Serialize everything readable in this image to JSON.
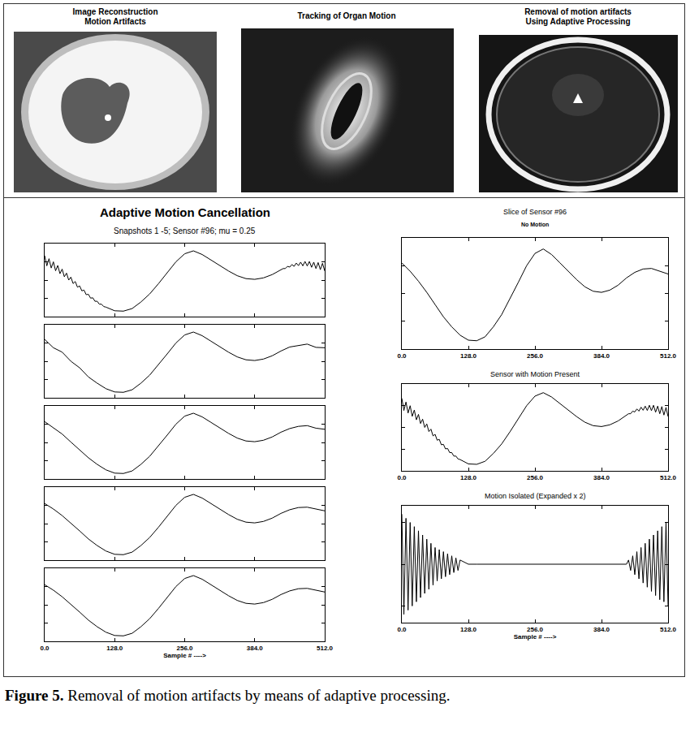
{
  "images": [
    {
      "title": [
        "Image Reconstruction",
        "Motion Artifacts"
      ]
    },
    {
      "title": [
        "Tracking of Organ Motion"
      ]
    },
    {
      "title": [
        "Removal of motion artifacts",
        "Using Adaptive Processing"
      ]
    }
  ],
  "chart_data": [
    {
      "type": "line",
      "title": "Adaptive Motion Cancellation",
      "subtitle": "Snapshots 1 -5; Sensor #96; mu = 0.25",
      "color": "#000000",
      "tick_labels": false,
      "grid": false,
      "xlim": [
        0,
        512
      ],
      "ylim": [
        -1,
        1
      ],
      "xticks": [
        {
          "value": 0,
          "label": "0.0"
        },
        {
          "value": 128,
          "label": "128.0"
        },
        {
          "value": 256,
          "label": "256.0"
        },
        {
          "value": 384,
          "label": "384.0"
        },
        {
          "value": 512,
          "label": "512.0"
        }
      ],
      "yticks": [
        -1,
        -0.5,
        0,
        0.5,
        1
      ],
      "x": [
        0,
        4,
        8,
        12,
        16,
        20,
        24,
        28,
        32,
        36,
        40,
        44,
        48,
        52,
        56,
        60,
        64,
        68,
        72,
        76,
        80,
        84,
        88,
        92,
        96,
        100,
        104,
        108,
        112,
        128,
        144,
        160,
        176,
        192,
        208,
        224,
        240,
        256,
        272,
        288,
        304,
        320,
        336,
        352,
        368,
        384,
        400,
        416,
        432,
        436,
        440,
        444,
        448,
        452,
        456,
        460,
        464,
        468,
        472,
        476,
        480,
        484,
        488,
        492,
        496,
        500,
        504,
        508,
        512
      ],
      "values": [
        0.67,
        0.39,
        0.585,
        0.33,
        0.5,
        0.255,
        0.4,
        0.175,
        0.3,
        0.09,
        0.19,
        0,
        0.08,
        -0.095,
        -0.04,
        -0.195,
        -0.16,
        -0.295,
        -0.275,
        -0.4,
        -0.39,
        -0.495,
        -0.485,
        -0.58,
        -0.58,
        -0.66,
        -0.66,
        -0.725,
        -0.74,
        -0.84,
        -0.85,
        -0.78,
        -0.6,
        -0.38,
        -0.1,
        0.2,
        0.5,
        0.72,
        0.8,
        0.7,
        0.55,
        0.4,
        0.25,
        0.12,
        0.04,
        0.02,
        0.06,
        0.15,
        0.28,
        0.315,
        0.315,
        0.375,
        0.355,
        0.425,
        0.375,
        0.465,
        0.395,
        0.49,
        0.39,
        0.51,
        0.385,
        0.51,
        0.35,
        0.49,
        0.315,
        0.48,
        0.285,
        0.46,
        0.25
      ]
    },
    {
      "type": "line",
      "color": "#000000",
      "tick_labels": false,
      "grid": false,
      "xlim": [
        0,
        512
      ],
      "ylim": [
        -1,
        1
      ],
      "xticks": [
        {
          "value": 0,
          "label": "0.0"
        },
        {
          "value": 128,
          "label": "128.0"
        },
        {
          "value": 256,
          "label": "256.0"
        },
        {
          "value": 384,
          "label": "384.0"
        },
        {
          "value": 512,
          "label": "512.0"
        }
      ],
      "yticks": [
        -1,
        -0.5,
        0,
        0.5,
        1
      ],
      "x": [
        0,
        16,
        32,
        48,
        64,
        80,
        96,
        112,
        128,
        144,
        160,
        176,
        192,
        208,
        224,
        240,
        256,
        272,
        288,
        304,
        320,
        336,
        352,
        368,
        384,
        400,
        416,
        432,
        448,
        464,
        480,
        496,
        512
      ],
      "values": [
        0.6,
        0.37,
        0.25,
        0,
        -0.18,
        -0.43,
        -0.6,
        -0.75,
        -0.84,
        -0.85,
        -0.78,
        -0.6,
        -0.38,
        -0.1,
        0.2,
        0.5,
        0.72,
        0.8,
        0.7,
        0.55,
        0.4,
        0.25,
        0.12,
        0.04,
        0.02,
        0.06,
        0.15,
        0.28,
        0.39,
        0.43,
        0.47,
        0.38,
        0.37
      ]
    },
    {
      "type": "line",
      "color": "#000000",
      "tick_labels": false,
      "grid": false,
      "xlim": [
        0,
        512
      ],
      "ylim": [
        -1,
        1
      ],
      "xticks": [
        {
          "value": 0,
          "label": "0.0"
        },
        {
          "value": 128,
          "label": "128.0"
        },
        {
          "value": 256,
          "label": "256.0"
        },
        {
          "value": 384,
          "label": "384.0"
        },
        {
          "value": 512,
          "label": "512.0"
        }
      ],
      "yticks": [
        -1,
        -0.5,
        0,
        0.5,
        1
      ],
      "x": [
        0,
        16,
        32,
        48,
        64,
        80,
        96,
        112,
        128,
        144,
        160,
        176,
        192,
        208,
        224,
        240,
        256,
        272,
        288,
        304,
        320,
        336,
        352,
        368,
        384,
        400,
        416,
        432,
        448,
        464,
        480,
        496,
        512
      ],
      "values": [
        0.57,
        0.39,
        0.23,
        0.01,
        -0.2,
        -0.42,
        -0.6,
        -0.75,
        -0.84,
        -0.85,
        -0.78,
        -0.6,
        -0.38,
        -0.1,
        0.2,
        0.5,
        0.72,
        0.8,
        0.7,
        0.55,
        0.4,
        0.25,
        0.12,
        0.04,
        0.02,
        0.06,
        0.15,
        0.28,
        0.38,
        0.44,
        0.46,
        0.39,
        0.36
      ]
    },
    {
      "type": "line",
      "color": "#000000",
      "tick_labels": false,
      "grid": false,
      "xlim": [
        0,
        512
      ],
      "ylim": [
        -1,
        1
      ],
      "xticks": [
        {
          "value": 0,
          "label": "0.0"
        },
        {
          "value": 128,
          "label": "128.0"
        },
        {
          "value": 256,
          "label": "256.0"
        },
        {
          "value": 384,
          "label": "384.0"
        },
        {
          "value": 512,
          "label": "512.0"
        }
      ],
      "yticks": [
        -1,
        -0.5,
        0,
        0.5,
        1
      ],
      "x": [
        0,
        16,
        32,
        48,
        64,
        80,
        96,
        112,
        128,
        144,
        160,
        176,
        192,
        208,
        224,
        240,
        256,
        272,
        288,
        304,
        320,
        336,
        352,
        368,
        384,
        400,
        416,
        432,
        448,
        464,
        480,
        496,
        512
      ],
      "values": [
        0.55,
        0.4,
        0.22,
        0.02,
        -0.2,
        -0.42,
        -0.6,
        -0.75,
        -0.84,
        -0.85,
        -0.78,
        -0.6,
        -0.38,
        -0.1,
        0.2,
        0.5,
        0.72,
        0.8,
        0.7,
        0.55,
        0.4,
        0.25,
        0.12,
        0.04,
        0.02,
        0.06,
        0.15,
        0.28,
        0.38,
        0.44,
        0.45,
        0.4,
        0.35
      ]
    },
    {
      "type": "line",
      "color": "#000000",
      "tick_labels": "x",
      "grid": false,
      "xlabel": "Sample # ---->",
      "xlim": [
        0,
        512
      ],
      "ylim": [
        -1,
        1
      ],
      "xticks": [
        {
          "value": 0,
          "label": "0.0"
        },
        {
          "value": 128,
          "label": "128.0"
        },
        {
          "value": 256,
          "label": "256.0"
        },
        {
          "value": 384,
          "label": "384.0"
        },
        {
          "value": 512,
          "label": "512.0"
        }
      ],
      "yticks": [
        -1,
        -0.5,
        0,
        0.5,
        1
      ],
      "x": [
        0,
        16,
        32,
        48,
        64,
        80,
        96,
        112,
        128,
        144,
        160,
        176,
        192,
        208,
        224,
        240,
        256,
        272,
        288,
        304,
        320,
        336,
        352,
        368,
        384,
        400,
        416,
        432,
        448,
        464,
        480,
        496,
        512
      ],
      "values": [
        0.55,
        0.4,
        0.22,
        0.02,
        -0.2,
        -0.42,
        -0.6,
        -0.75,
        -0.84,
        -0.85,
        -0.78,
        -0.6,
        -0.38,
        -0.1,
        0.2,
        0.5,
        0.72,
        0.8,
        0.7,
        0.55,
        0.4,
        0.25,
        0.12,
        0.04,
        0.02,
        0.06,
        0.15,
        0.28,
        0.38,
        0.44,
        0.45,
        0.4,
        0.35
      ]
    },
    {
      "type": "line",
      "title": "Slice of Sensor #96",
      "subtitle": "No Motion",
      "color": "#000000",
      "tick_labels": "x",
      "grid": false,
      "xlim": [
        0,
        512
      ],
      "ylim": [
        -1,
        1
      ],
      "xticks": [
        {
          "value": 0,
          "label": "0.0"
        },
        {
          "value": 128,
          "label": "128.0"
        },
        {
          "value": 256,
          "label": "256.0"
        },
        {
          "value": 384,
          "label": "384.0"
        },
        {
          "value": 512,
          "label": "512.0"
        }
      ],
      "yticks": [
        -1,
        -0.5,
        0,
        0.5,
        1
      ],
      "x": [
        0,
        16,
        32,
        48,
        64,
        80,
        96,
        112,
        128,
        144,
        160,
        176,
        192,
        208,
        224,
        240,
        256,
        272,
        288,
        304,
        320,
        336,
        352,
        368,
        384,
        400,
        416,
        432,
        448,
        464,
        480,
        496,
        512
      ],
      "values": [
        0.55,
        0.4,
        0.22,
        0.02,
        -0.2,
        -0.42,
        -0.6,
        -0.75,
        -0.84,
        -0.85,
        -0.78,
        -0.6,
        -0.38,
        -0.1,
        0.2,
        0.5,
        0.72,
        0.8,
        0.7,
        0.55,
        0.4,
        0.25,
        0.12,
        0.04,
        0.02,
        0.06,
        0.15,
        0.28,
        0.38,
        0.44,
        0.45,
        0.4,
        0.35
      ]
    },
    {
      "type": "line",
      "title": "Sensor with Motion Present",
      "color": "#000000",
      "tick_labels": "x",
      "grid": false,
      "xlim": [
        0,
        512
      ],
      "ylim": [
        -1,
        1
      ],
      "xticks": [
        {
          "value": 0,
          "label": "0.0"
        },
        {
          "value": 128,
          "label": "128.0"
        },
        {
          "value": 256,
          "label": "256.0"
        },
        {
          "value": 384,
          "label": "384.0"
        },
        {
          "value": 512,
          "label": "512.0"
        }
      ],
      "yticks": [
        -1,
        -0.5,
        0,
        0.5,
        1
      ],
      "x": [
        0,
        4,
        8,
        12,
        16,
        20,
        24,
        28,
        32,
        36,
        40,
        44,
        48,
        52,
        56,
        60,
        64,
        68,
        72,
        76,
        80,
        84,
        88,
        92,
        96,
        100,
        104,
        108,
        112,
        128,
        144,
        160,
        176,
        192,
        208,
        224,
        240,
        256,
        272,
        288,
        304,
        320,
        336,
        352,
        368,
        384,
        400,
        416,
        432,
        436,
        440,
        444,
        448,
        452,
        456,
        460,
        464,
        468,
        472,
        476,
        480,
        484,
        488,
        492,
        496,
        500,
        504,
        508,
        512
      ],
      "values": [
        0.67,
        0.39,
        0.585,
        0.33,
        0.5,
        0.255,
        0.4,
        0.175,
        0.3,
        0.09,
        0.19,
        0,
        0.08,
        -0.095,
        -0.04,
        -0.195,
        -0.16,
        -0.295,
        -0.275,
        -0.4,
        -0.39,
        -0.495,
        -0.485,
        -0.58,
        -0.58,
        -0.66,
        -0.66,
        -0.725,
        -0.74,
        -0.84,
        -0.85,
        -0.78,
        -0.6,
        -0.38,
        -0.1,
        0.2,
        0.5,
        0.72,
        0.8,
        0.7,
        0.55,
        0.4,
        0.25,
        0.12,
        0.04,
        0.02,
        0.06,
        0.15,
        0.28,
        0.315,
        0.315,
        0.375,
        0.355,
        0.425,
        0.375,
        0.465,
        0.395,
        0.49,
        0.39,
        0.51,
        0.385,
        0.51,
        0.35,
        0.49,
        0.315,
        0.48,
        0.285,
        0.46,
        0.25
      ]
    },
    {
      "type": "line",
      "title": "Motion Isolated (Expanded x 2)",
      "color": "#000000",
      "tick_labels": "x",
      "grid": false,
      "xlabel": "Sample # ---->",
      "xlim": [
        0,
        512
      ],
      "ylim": [
        -0.14,
        0.14
      ],
      "xticks": [
        {
          "value": 0,
          "label": "0.0"
        },
        {
          "value": 128,
          "label": "128.0"
        },
        {
          "value": 256,
          "label": "256.0"
        },
        {
          "value": 384,
          "label": "384.0"
        },
        {
          "value": 512,
          "label": "512.0"
        }
      ],
      "yticks": [
        -0.1,
        0,
        0.1
      ],
      "x": [
        0,
        4,
        8,
        12,
        16,
        20,
        24,
        28,
        32,
        36,
        40,
        44,
        48,
        52,
        56,
        60,
        64,
        68,
        72,
        76,
        80,
        84,
        88,
        92,
        96,
        100,
        104,
        108,
        112,
        128,
        144,
        160,
        176,
        192,
        208,
        224,
        240,
        256,
        272,
        288,
        304,
        320,
        336,
        352,
        368,
        384,
        400,
        416,
        432,
        436,
        440,
        444,
        448,
        452,
        456,
        460,
        464,
        468,
        472,
        476,
        480,
        484,
        488,
        492,
        496,
        500,
        504,
        508,
        512
      ],
      "values": [
        0.12,
        -0.12,
        0.11,
        -0.11,
        0.1,
        -0.1,
        0.09,
        -0.09,
        0.08,
        -0.08,
        0.07,
        -0.07,
        0.06,
        -0.06,
        0.05,
        -0.05,
        0.04,
        -0.04,
        0.035,
        -0.035,
        0.03,
        -0.03,
        0.025,
        -0.025,
        0.02,
        -0.02,
        0.015,
        -0.015,
        0.01,
        0,
        0,
        0,
        0,
        0,
        0,
        0,
        0,
        0,
        0,
        0,
        0,
        0,
        0,
        0,
        0,
        0,
        0,
        0,
        0,
        0.01,
        -0.015,
        0.02,
        -0.025,
        0.03,
        -0.035,
        0.04,
        -0.045,
        0.05,
        -0.055,
        0.06,
        -0.065,
        0.07,
        -0.075,
        0.08,
        -0.085,
        0.09,
        -0.09,
        0.1,
        -0.1
      ]
    }
  ],
  "caption": {
    "label": "Figure 5.",
    "text": "Removal of motion artifacts by means of adaptive processing."
  }
}
